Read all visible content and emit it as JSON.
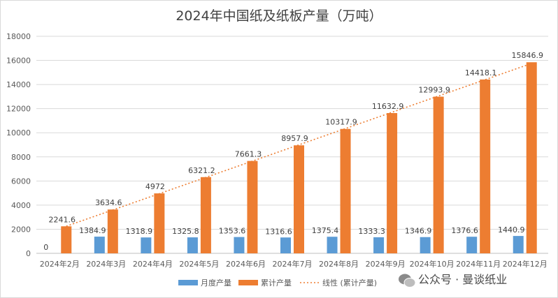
{
  "chart_data": {
    "type": "bar",
    "title": "2024年中国纸及纸板产量（万吨）",
    "categories": [
      "2024年2月",
      "2024年3月",
      "2024年4月",
      "2024年5月",
      "2024年6月",
      "2024年7月",
      "2024年8月",
      "2024年9月",
      "2024年10月",
      "2024年11月",
      "2024年12月"
    ],
    "series": [
      {
        "name": "月度产量",
        "type": "bar",
        "color": "#5b9bd5",
        "values": [
          0,
          1384.9,
          1318.9,
          1325.8,
          1353.6,
          1316.6,
          1375.4,
          1333.3,
          1346.9,
          1376.6,
          1440.9
        ],
        "labels": [
          "0",
          "1384.9",
          "1318.9",
          "1325.8",
          "1353.6",
          "1316.6",
          "1375.4",
          "1333.3",
          "1346.9",
          "1376.6",
          "1440.9"
        ]
      },
      {
        "name": "累计产量",
        "type": "bar",
        "color": "#ed7d31",
        "values": [
          2241.6,
          3634.6,
          4972,
          6321.2,
          7661.3,
          8957.9,
          10317.9,
          11632.9,
          12993.9,
          14418.1,
          15846.9
        ],
        "labels": [
          "2241.6",
          "3634.6",
          "4972",
          "6321.2",
          "7661.3",
          "8957.9",
          "10317.9",
          "11632.9",
          "12993.9",
          "14418.1",
          "15846.9"
        ]
      }
    ],
    "trendline": {
      "name": "线性 (累计产量)",
      "type": "linear",
      "of": "累计产量",
      "color": "#ed7d31",
      "style": "dotted"
    },
    "ylim": [
      0,
      18000
    ],
    "yticks": [
      0,
      2000,
      4000,
      6000,
      8000,
      10000,
      12000,
      14000,
      16000,
      18000
    ],
    "grid": true,
    "legend": "bottom"
  },
  "watermark": {
    "text": "公众号 · 曼谈纸业",
    "icon": "wechat-icon"
  }
}
